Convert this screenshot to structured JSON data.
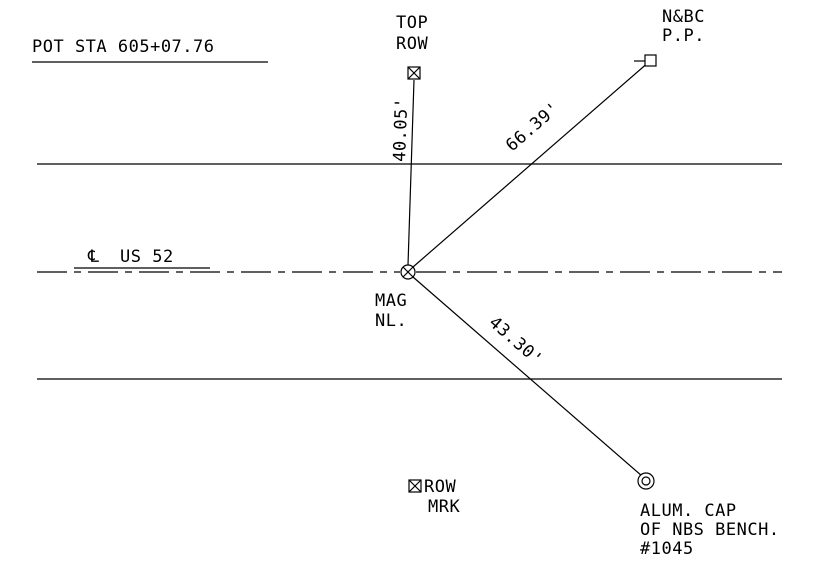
{
  "title": "POT STA 605+07.76",
  "centerline_label": "US 52",
  "centerline_symbol": "℄",
  "points": {
    "top_row": {
      "lines": [
        "TOP",
        "ROW"
      ],
      "symbol": "boxed-x-icon"
    },
    "nbc_pp": {
      "lines": [
        "N&BC",
        "P.P."
      ],
      "symbol": "utility-pole-icon"
    },
    "mag_nail": {
      "lines": [
        "MAG",
        "NL."
      ],
      "symbol": "circled-x-icon"
    },
    "alum_cap": {
      "lines": [
        "ALUM. CAP",
        "OF NBS BENCH.",
        "#1045"
      ],
      "symbol": "double-circle-icon"
    },
    "row_marker": {
      "lines": [
        "ROW",
        "MRK"
      ],
      "symbol": "boxed-x-icon"
    }
  },
  "distances": {
    "to_top_row": "40.05'",
    "to_nbc_pp": "66.39'",
    "to_alum_cap": "43.30'"
  }
}
